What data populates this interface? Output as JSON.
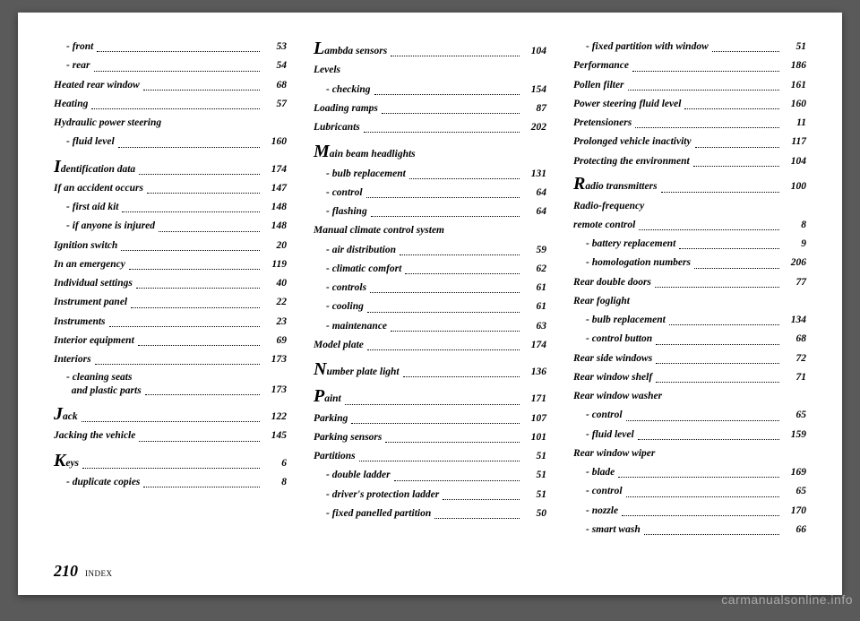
{
  "page_number": "210",
  "section_label": "INDEX",
  "watermark": "carmanualsonline.info",
  "columns": [
    [
      {
        "type": "sub",
        "label": "- front",
        "page": "53"
      },
      {
        "type": "sub",
        "label": "- rear",
        "page": "54"
      },
      {
        "type": "main",
        "label": "Heated rear window",
        "page": "68"
      },
      {
        "type": "main",
        "label": "Heating",
        "page": "57"
      },
      {
        "type": "main",
        "label": "Hydraulic power steering",
        "page": ""
      },
      {
        "type": "sub",
        "label": "- fluid level",
        "page": "160"
      },
      {
        "type": "spacer"
      },
      {
        "type": "drop",
        "letter": "I",
        "rest": "dentification data",
        "page": "174"
      },
      {
        "type": "main",
        "label": "If an accident occurs",
        "page": "147"
      },
      {
        "type": "sub",
        "label": "- first aid kit",
        "page": "148"
      },
      {
        "type": "sub",
        "label": "- if anyone is injured",
        "page": "148"
      },
      {
        "type": "main",
        "label": "Ignition switch",
        "page": "20"
      },
      {
        "type": "main",
        "label": "In an emergency",
        "page": "119"
      },
      {
        "type": "main",
        "label": "Individual settings",
        "page": "40"
      },
      {
        "type": "main",
        "label": "Instrument panel",
        "page": "22"
      },
      {
        "type": "main",
        "label": "Instruments",
        "page": "23"
      },
      {
        "type": "main",
        "label": "Interior equipment",
        "page": "69"
      },
      {
        "type": "main",
        "label": "Interiors",
        "page": "173"
      },
      {
        "type": "subwrap",
        "label": "- cleaning seats<br>&nbsp;&nbsp;and plastic parts",
        "page": "173"
      },
      {
        "type": "spacer"
      },
      {
        "type": "drop",
        "letter": "J",
        "rest": "ack",
        "page": "122"
      },
      {
        "type": "main",
        "label": "Jacking the vehicle",
        "page": "145"
      },
      {
        "type": "spacer"
      },
      {
        "type": "drop",
        "letter": "K",
        "rest": "eys",
        "page": "6"
      },
      {
        "type": "sub",
        "label": "- duplicate copies",
        "page": "8"
      }
    ],
    [
      {
        "type": "drop",
        "letter": "L",
        "rest": "ambda sensors",
        "page": "104"
      },
      {
        "type": "main",
        "label": "Levels",
        "page": ""
      },
      {
        "type": "sub",
        "label": "- checking",
        "page": "154"
      },
      {
        "type": "main",
        "label": "Loading ramps",
        "page": "87"
      },
      {
        "type": "main",
        "label": "Lubricants",
        "page": "202"
      },
      {
        "type": "spacer"
      },
      {
        "type": "drop",
        "letter": "M",
        "rest": "ain beam headlights",
        "page": ""
      },
      {
        "type": "sub",
        "label": "- bulb replacement",
        "page": "131"
      },
      {
        "type": "sub",
        "label": "- control",
        "page": "64"
      },
      {
        "type": "sub",
        "label": "- flashing",
        "page": "64"
      },
      {
        "type": "main",
        "label": "Manual climate control system",
        "page": ""
      },
      {
        "type": "sub",
        "label": "- air distribution",
        "page": "59"
      },
      {
        "type": "sub",
        "label": "- climatic comfort",
        "page": "62"
      },
      {
        "type": "sub",
        "label": "- controls",
        "page": "61"
      },
      {
        "type": "sub",
        "label": "- cooling",
        "page": "61"
      },
      {
        "type": "sub",
        "label": "- maintenance",
        "page": "63"
      },
      {
        "type": "main",
        "label": "Model plate",
        "page": "174"
      },
      {
        "type": "spacer"
      },
      {
        "type": "drop",
        "letter": "N",
        "rest": "umber plate light",
        "page": "136"
      },
      {
        "type": "spacer"
      },
      {
        "type": "drop",
        "letter": "P",
        "rest": "aint",
        "page": "171"
      },
      {
        "type": "main",
        "label": "Parking",
        "page": "107"
      },
      {
        "type": "main",
        "label": "Parking sensors",
        "page": "101"
      },
      {
        "type": "main",
        "label": "Partitions",
        "page": "51"
      },
      {
        "type": "sub",
        "label": "- double ladder",
        "page": "51"
      },
      {
        "type": "sub",
        "label": "- driver's protection ladder",
        "page": "51"
      },
      {
        "type": "sub",
        "label": "- fixed panelled partition",
        "page": "50"
      }
    ],
    [
      {
        "type": "sub",
        "label": "- fixed partition with window",
        "page": "51"
      },
      {
        "type": "main",
        "label": "Performance",
        "page": "186"
      },
      {
        "type": "main",
        "label": "Pollen filter",
        "page": "161"
      },
      {
        "type": "main",
        "label": "Power steering fluid level",
        "page": "160"
      },
      {
        "type": "main",
        "label": "Pretensioners",
        "page": "11"
      },
      {
        "type": "main",
        "label": "Prolonged vehicle inactivity",
        "page": "117"
      },
      {
        "type": "main",
        "label": "Protecting the environment",
        "page": "104"
      },
      {
        "type": "spacer"
      },
      {
        "type": "drop",
        "letter": "R",
        "rest": "adio transmitters",
        "page": "100"
      },
      {
        "type": "main",
        "label": "Radio-frequency",
        "page": ""
      },
      {
        "type": "main",
        "label": "remote control",
        "page": "8"
      },
      {
        "type": "sub",
        "label": "- battery replacement",
        "page": "9"
      },
      {
        "type": "sub",
        "label": "- homologation numbers",
        "page": "206"
      },
      {
        "type": "main",
        "label": "Rear double doors",
        "page": "77"
      },
      {
        "type": "main",
        "label": "Rear foglight",
        "page": ""
      },
      {
        "type": "sub",
        "label": "- bulb replacement",
        "page": "134"
      },
      {
        "type": "sub",
        "label": "- control button",
        "page": "68"
      },
      {
        "type": "main",
        "label": "Rear side windows",
        "page": "72"
      },
      {
        "type": "main",
        "label": "Rear window shelf",
        "page": "71"
      },
      {
        "type": "main",
        "label": "Rear window washer",
        "page": ""
      },
      {
        "type": "sub",
        "label": "- control",
        "page": "65"
      },
      {
        "type": "sub",
        "label": "- fluid level",
        "page": "159"
      },
      {
        "type": "main",
        "label": "Rear window wiper",
        "page": ""
      },
      {
        "type": "sub",
        "label": "- blade",
        "page": "169"
      },
      {
        "type": "sub",
        "label": "- control",
        "page": "65"
      },
      {
        "type": "sub",
        "label": "- nozzle",
        "page": "170"
      },
      {
        "type": "sub",
        "label": "- smart wash",
        "page": "66"
      }
    ]
  ]
}
